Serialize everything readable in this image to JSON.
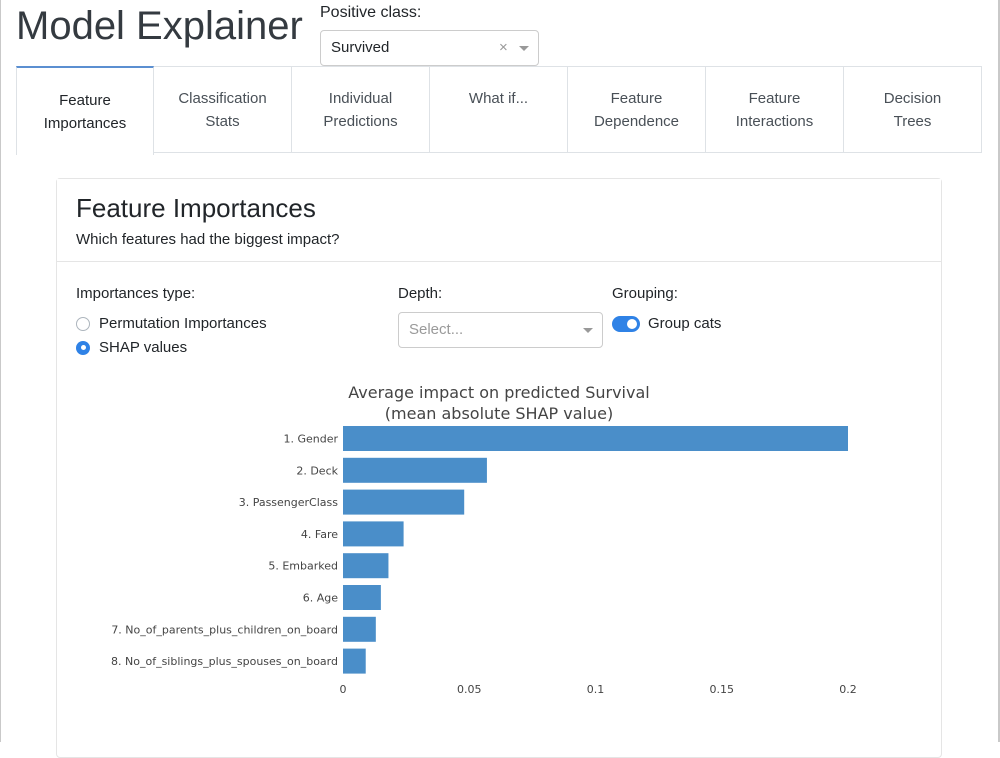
{
  "app": {
    "title": "Model Explainer"
  },
  "positive_class": {
    "label": "Positive class:",
    "value": "Survived",
    "clear_symbol": "×"
  },
  "tabs": [
    {
      "label": "Feature\nImportances",
      "active": true
    },
    {
      "label": "Classification\nStats",
      "active": false
    },
    {
      "label": "Individual\nPredictions",
      "active": false
    },
    {
      "label": "What if...",
      "active": false
    },
    {
      "label": "Feature\nDependence",
      "active": false
    },
    {
      "label": "Feature\nInteractions",
      "active": false
    },
    {
      "label": "Decision\nTrees",
      "active": false
    }
  ],
  "card": {
    "title": "Feature Importances",
    "subtitle": "Which features had the biggest impact?"
  },
  "controls": {
    "importances_type": {
      "label": "Importances type:",
      "options": [
        "Permutation Importances",
        "SHAP values"
      ],
      "selected": "SHAP values"
    },
    "depth": {
      "label": "Depth:",
      "placeholder": "Select..."
    },
    "grouping": {
      "label": "Grouping:",
      "toggle_label": "Group cats",
      "on": true
    }
  },
  "colors": {
    "bar": "#4a8ec9",
    "accent": "#2f82e6",
    "tab_active_border": "#5b8fd1"
  },
  "chart_data": {
    "type": "bar",
    "orientation": "horizontal",
    "title": "Average impact on predicted Survival\n(mean absolute SHAP value)",
    "categories": [
      "1. Gender",
      "2. Deck",
      "3. PassengerClass",
      "4. Fare",
      "5. Embarked",
      "6. Age",
      "7. No_of_parents_plus_children_on_board",
      "8. No_of_siblings_plus_spouses_on_board"
    ],
    "values": [
      0.2,
      0.057,
      0.048,
      0.024,
      0.018,
      0.015,
      0.013,
      0.009
    ],
    "xticks": [
      "0",
      "0.05",
      "0.1",
      "0.15",
      "0.2"
    ],
    "xlim": [
      0,
      0.2
    ],
    "grid": false,
    "legend": "none"
  }
}
